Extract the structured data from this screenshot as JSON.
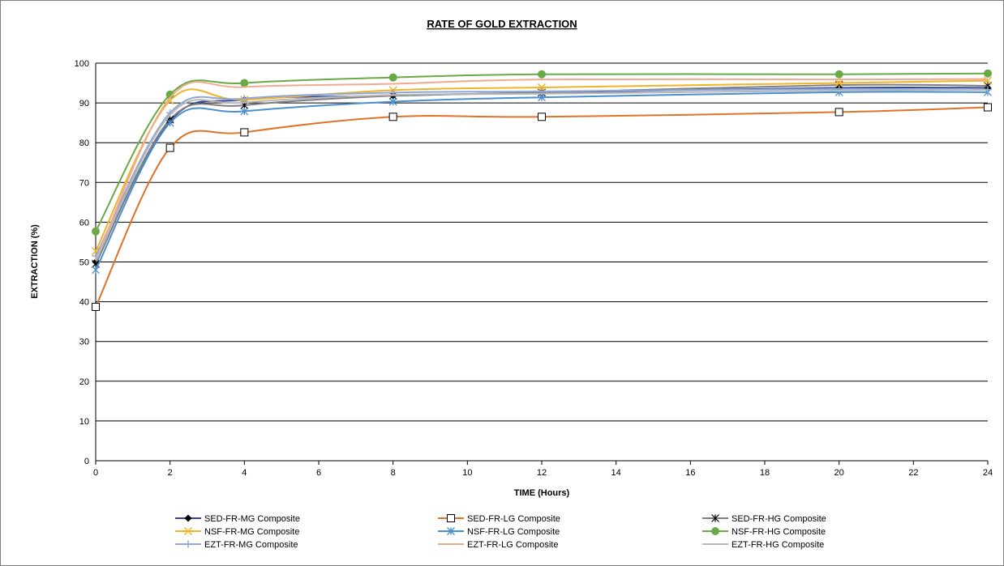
{
  "chart_data": {
    "type": "line",
    "title": "RATE OF GOLD EXTRACTION",
    "xlabel": "TIME (Hours)",
    "ylabel": "EXTRACTION (%)",
    "xlim": [
      0,
      24
    ],
    "ylim": [
      0,
      100
    ],
    "xticks": [
      0,
      2,
      4,
      6,
      8,
      10,
      12,
      14,
      16,
      18,
      20,
      22,
      24
    ],
    "yticks": [
      0,
      10,
      20,
      30,
      40,
      50,
      60,
      70,
      80,
      90,
      100
    ],
    "grid": "horizontal",
    "legend_position": "bottom",
    "x": [
      0,
      2,
      4,
      8,
      12,
      20,
      24
    ],
    "series": [
      {
        "name": "SED-FR-MG Composite",
        "color": "#2e4a9e",
        "marker": "diamond",
        "values": [
          50.0,
          85.5,
          90.8,
          91.8,
          92.6,
          93.8,
          93.8
        ]
      },
      {
        "name": "SED-FR-LG Composite",
        "color": "#e07328",
        "marker": "open-square",
        "values": [
          38.7,
          78.7,
          82.6,
          86.5,
          86.5,
          87.7,
          88.9
        ]
      },
      {
        "name": "SED-FR-HG Composite",
        "color": "#7f7f7f",
        "marker": "asterisk",
        "values": [
          49.5,
          85.8,
          89.4,
          91.8,
          92.6,
          94.5,
          94.3
        ]
      },
      {
        "name": "NSF-FR-MG Composite",
        "color": "#f0b428",
        "marker": "x",
        "values": [
          52.7,
          90.6,
          90.8,
          93.2,
          93.9,
          95.0,
          95.6
        ]
      },
      {
        "name": "NSF-FR-LG Composite",
        "color": "#4a8fd0",
        "marker": "star",
        "values": [
          48.0,
          85.0,
          87.9,
          90.3,
          91.4,
          92.7,
          92.7
        ]
      },
      {
        "name": "NSF-FR-HG Composite",
        "color": "#6aaa46",
        "marker": "circle",
        "values": [
          57.7,
          92.1,
          95.0,
          96.4,
          97.2,
          97.2,
          97.4
        ]
      },
      {
        "name": "EZT-FR-MG Composite",
        "color": "#8fa7d8",
        "marker": "plus",
        "values": [
          51.5,
          87.5,
          91.1,
          92.6,
          92.9,
          93.5,
          93.3
        ]
      },
      {
        "name": "EZT-FR-LG Composite",
        "color": "#f2aa8f",
        "marker": "none",
        "values": [
          50.5,
          91.3,
          94.0,
          94.8,
          95.9,
          95.9,
          96.0
        ]
      },
      {
        "name": "EZT-FR-HG Composite",
        "color": "#b8b8b8",
        "marker": "none",
        "values": [
          50.3,
          87.0,
          90.1,
          92.0,
          92.3,
          93.1,
          93.3
        ]
      }
    ]
  }
}
